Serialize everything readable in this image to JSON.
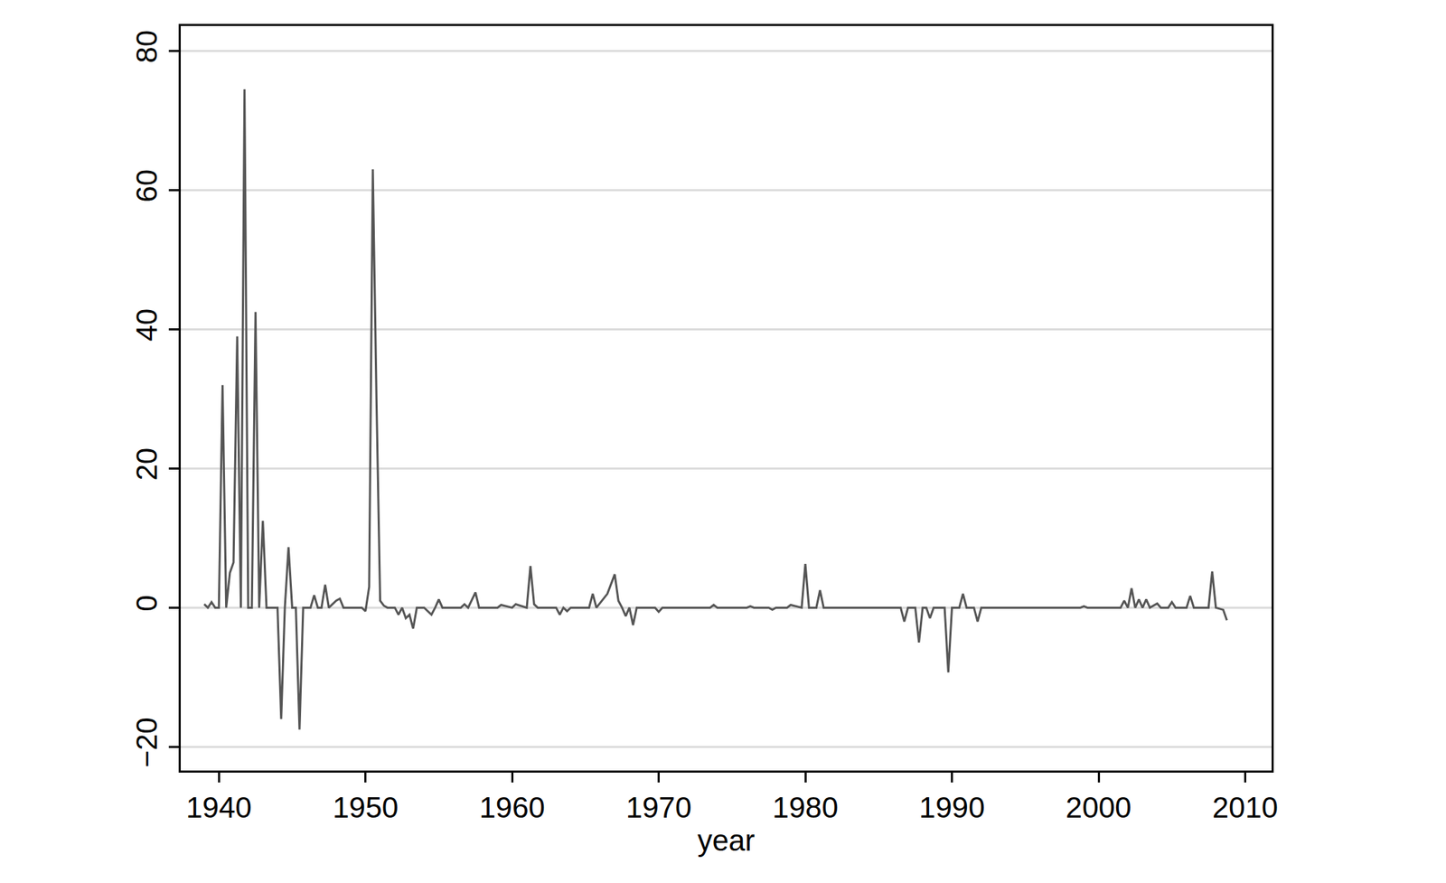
{
  "chart_data": {
    "type": "line",
    "x_label": "year",
    "color": "#555555",
    "grid": true,
    "xlim": [
      1937.4,
      2011.8
    ],
    "ylim": [
      -23.4,
      83.6
    ],
    "xticks": [
      1940,
      1950,
      1960,
      1970,
      1980,
      1990,
      2000,
      2010
    ],
    "yticks": [
      -20,
      0,
      20,
      40,
      60,
      80
    ],
    "x": [
      1939.0,
      1939.25,
      1939.5,
      1939.75,
      1940.0,
      1940.25,
      1940.5,
      1940.75,
      1941.0,
      1941.25,
      1941.5,
      1941.75,
      1942.0,
      1942.25,
      1942.5,
      1942.75,
      1943.0,
      1943.25,
      1944.0,
      1944.25,
      1944.5,
      1944.75,
      1945.0,
      1945.25,
      1945.5,
      1945.75,
      1946.25,
      1946.5,
      1946.75,
      1947.0,
      1947.25,
      1947.5,
      1947.75,
      1948.0,
      1948.25,
      1948.5,
      1949.75,
      1950.0,
      1950.25,
      1950.5,
      1950.75,
      1951.0,
      1951.25,
      1951.5,
      1952.0,
      1952.25,
      1952.5,
      1952.75,
      1953.0,
      1953.25,
      1953.5,
      1954.0,
      1954.5,
      1954.75,
      1955.0,
      1955.25,
      1956.5,
      1956.75,
      1957.0,
      1957.5,
      1957.75,
      1959.0,
      1959.25,
      1960.0,
      1960.25,
      1961.0,
      1961.25,
      1961.5,
      1961.75,
      1963.0,
      1963.25,
      1963.5,
      1963.75,
      1964.0,
      1965.25,
      1965.5,
      1965.75,
      1966.5,
      1967.0,
      1967.25,
      1967.5,
      1967.75,
      1968.0,
      1968.25,
      1968.5,
      1969.75,
      1970.0,
      1970.25,
      1973.5,
      1973.75,
      1974.0,
      1976.0,
      1976.25,
      1976.5,
      1977.5,
      1977.75,
      1978.0,
      1978.75,
      1979.0,
      1979.75,
      1980.0,
      1980.25,
      1980.75,
      1981.0,
      1981.25,
      1986.5,
      1986.75,
      1987.0,
      1987.5,
      1987.75,
      1988.0,
      1988.25,
      1988.5,
      1988.75,
      1989.5,
      1989.75,
      1990.0,
      1990.5,
      1990.75,
      1991.0,
      1991.5,
      1991.75,
      1992.0,
      1998.75,
      1999.0,
      1999.25,
      2001.5,
      2001.75,
      2002.0,
      2002.25,
      2002.5,
      2002.75,
      2003.0,
      2003.25,
      2003.5,
      2004.0,
      2004.25,
      2004.75,
      2005.0,
      2005.25,
      2006.0,
      2006.25,
      2006.5,
      2007.5,
      2007.75,
      2008.0,
      2008.5,
      2008.75
    ],
    "values": [
      0.5,
      0,
      0.8,
      0,
      0,
      32,
      0,
      5,
      6.5,
      39,
      0,
      74.5,
      0,
      0,
      42.5,
      0,
      12.5,
      0,
      0,
      -16,
      0,
      8.7,
      0,
      0,
      -17.5,
      0,
      0,
      1.8,
      0,
      0,
      3.3,
      0,
      0.5,
      1,
      1.3,
      0,
      0,
      -0.5,
      3,
      63,
      30,
      1,
      0.3,
      0,
      0,
      -1,
      0,
      -1.5,
      -1,
      -3,
      0,
      0,
      -1,
      0,
      1.2,
      0,
      0,
      0.5,
      0,
      2.2,
      0,
      0,
      0.4,
      0,
      0.5,
      0,
      6,
      0.5,
      0,
      0,
      -1,
      0,
      -0.5,
      0,
      0,
      2,
      0,
      2,
      4.8,
      1,
      0,
      -1.2,
      0,
      -2.5,
      0,
      0,
      -0.6,
      0,
      0,
      0.4,
      0,
      0,
      0.2,
      0,
      0,
      -0.3,
      0,
      0,
      0.4,
      0,
      6.3,
      0,
      0,
      2.5,
      0,
      0,
      -2,
      0,
      0,
      -5,
      0,
      0,
      -1.5,
      0,
      0,
      -9.3,
      0,
      0,
      2,
      0,
      0,
      -2,
      0,
      0,
      0.2,
      0,
      0,
      1,
      0,
      2.8,
      0,
      1.2,
      0,
      1.2,
      0,
      0.6,
      0,
      0,
      0.8,
      0,
      0,
      1.7,
      0,
      0,
      5.2,
      0,
      -0.3,
      -1.8
    ]
  }
}
